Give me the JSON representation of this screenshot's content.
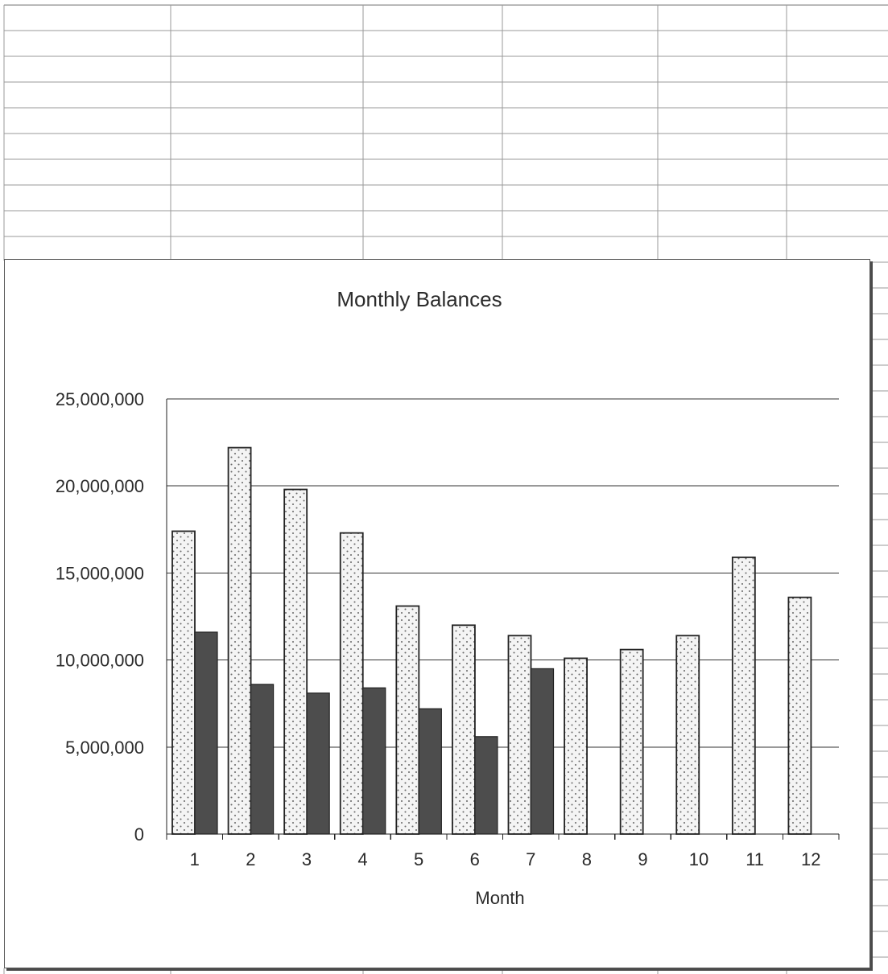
{
  "colors": {
    "light_bar_fill": "#f4f4f4",
    "light_bar_dots": "#6a6a6a",
    "dark_bar_fill": "#4d4d4d",
    "gridline": "#333333",
    "spreadsheet_grid": "#9a9a9a"
  },
  "chart_data": {
    "type": "bar",
    "title": "Monthly Balances",
    "xlabel": "Month",
    "ylabel": "",
    "categories": [
      "1",
      "2",
      "3",
      "4",
      "5",
      "6",
      "7",
      "8",
      "9",
      "10",
      "11",
      "12"
    ],
    "series": [
      {
        "values": [
          17400000,
          22200000,
          19800000,
          17300000,
          13100000,
          12000000,
          11400000,
          10100000,
          10600000,
          11400000,
          15900000,
          13600000
        ]
      },
      {
        "values": [
          11600000,
          8600000,
          8100000,
          8400000,
          7200000,
          5600000,
          9500000,
          null,
          null,
          null,
          null,
          null
        ]
      }
    ],
    "ylim": [
      0,
      25000000
    ],
    "yticks": [
      0,
      5000000,
      10000000,
      15000000,
      20000000,
      25000000
    ],
    "ytick_labels": [
      "0",
      "5,000,000",
      "10,000,000",
      "15,000,000",
      "20,000,000",
      "25,000,000"
    ],
    "grid": true,
    "legend": "none"
  }
}
